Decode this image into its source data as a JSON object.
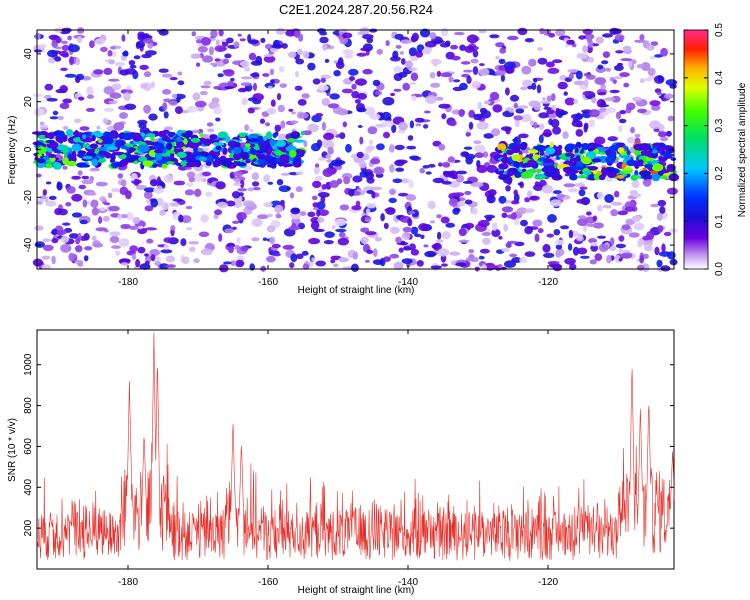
{
  "title": "C2E1.2024.287.20.56.R24",
  "colors": {
    "snr_line": "#e8302a",
    "colormap": [
      "#ffffff",
      "#c8a8f0",
      "#6a00e0",
      "#1a10d8",
      "#0030ff",
      "#00c8ff",
      "#00e060",
      "#40ff00",
      "#e0ff00",
      "#ffb000",
      "#ff2000",
      "#ff2c8c"
    ]
  },
  "chart_data": [
    {
      "type": "heatmap",
      "xlabel": "Height of straight line (km)",
      "ylabel": "Frequency (Hz)",
      "xlim": [
        -193,
        -102
      ],
      "ylim": [
        -50,
        50
      ],
      "x_ticks": [
        -180,
        -160,
        -140,
        -120
      ],
      "y_ticks": [
        -40,
        -20,
        0,
        20,
        40
      ],
      "colorbar": {
        "label": "Normalized spectral amplitude",
        "range": [
          0.0,
          0.5
        ],
        "ticks": [
          "0.0",
          "0.1",
          "0.2",
          "0.3",
          "0.4",
          "0.5"
        ]
      },
      "features": [
        {
          "description": "band",
          "x_range": [
            -193,
            -155
          ],
          "frequency": 0,
          "peak": 0.35
        },
        {
          "description": "band",
          "x_range": [
            -127,
            -102
          ],
          "frequency": -5,
          "peak": 0.45
        }
      ]
    },
    {
      "type": "line",
      "xlabel": "Height of straight line (km)",
      "ylabel": "SNR (10 * v/v)",
      "xlim": [
        -193,
        -102
      ],
      "ylim": [
        0,
        1170
      ],
      "x_ticks": [
        -180,
        -160,
        -140,
        -120
      ],
      "y_ticks": [
        200,
        400,
        600,
        800,
        1000
      ],
      "baseline": 160,
      "peaks": [
        {
          "x": -179.8,
          "y": 930
        },
        {
          "x": -177.7,
          "y": 670
        },
        {
          "x": -176.3,
          "y": 1170
        },
        {
          "x": -175.8,
          "y": 1040
        },
        {
          "x": -165.0,
          "y": 730
        },
        {
          "x": -163.8,
          "y": 620
        },
        {
          "x": -108.0,
          "y": 1020
        },
        {
          "x": -106.8,
          "y": 800
        },
        {
          "x": -105.6,
          "y": 840
        },
        {
          "x": -102.2,
          "y": 580
        }
      ]
    }
  ]
}
